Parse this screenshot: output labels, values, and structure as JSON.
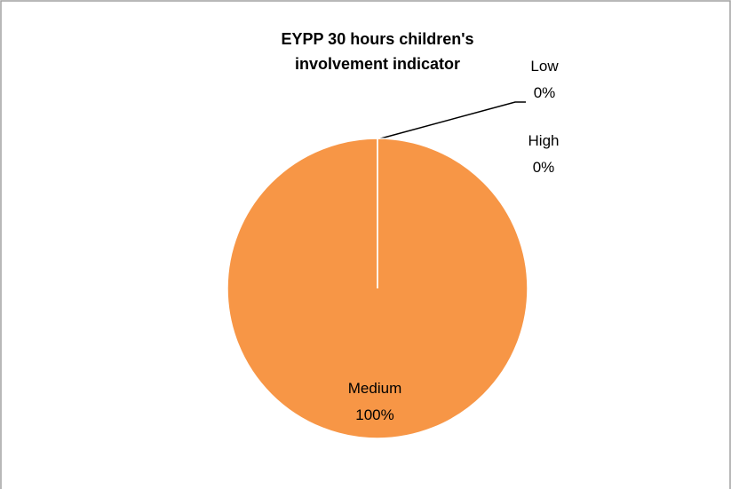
{
  "chart_data": {
    "type": "pie",
    "title": "EYPP 30 hours children's involvement indicator",
    "categories": [
      "Low",
      "Medium",
      "High"
    ],
    "values": [
      0,
      100,
      0
    ],
    "value_labels": [
      "0%",
      "100%",
      "0%"
    ],
    "colors": [
      "#4f81bd",
      "#f79646",
      "#9bbb59"
    ]
  }
}
